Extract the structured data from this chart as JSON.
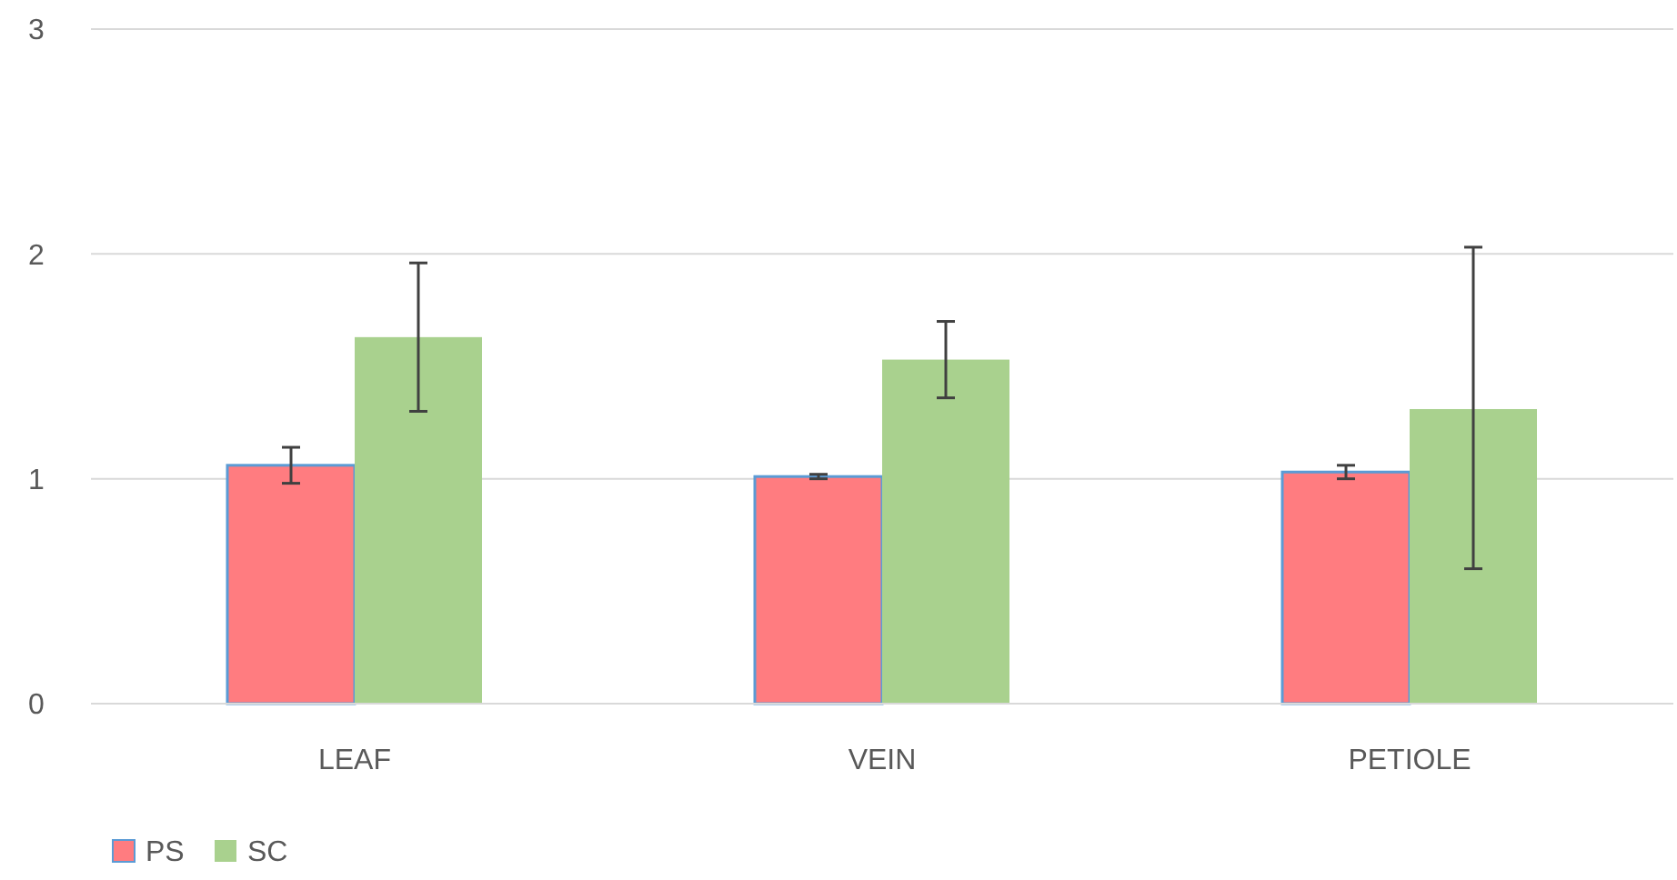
{
  "chart_data": {
    "type": "bar",
    "categories": [
      "LEAF",
      "VEIN",
      "PETIOLE"
    ],
    "series": [
      {
        "name": "PS",
        "color": "#ff7c80",
        "values": [
          1.06,
          1.01,
          1.03
        ],
        "errors": [
          [
            0.98,
            1.14
          ],
          [
            1.0,
            1.02
          ],
          [
            1.0,
            1.06
          ]
        ]
      },
      {
        "name": "SC",
        "color": "#a9d18e",
        "values": [
          1.63,
          1.53,
          1.31
        ],
        "errors": [
          [
            1.3,
            1.96
          ],
          [
            1.36,
            1.7
          ],
          [
            0.6,
            2.03
          ]
        ]
      }
    ],
    "ylim": [
      0,
      3
    ],
    "yticks": [
      0,
      1,
      2,
      3
    ],
    "grid": "y",
    "legend": "bottom left"
  }
}
